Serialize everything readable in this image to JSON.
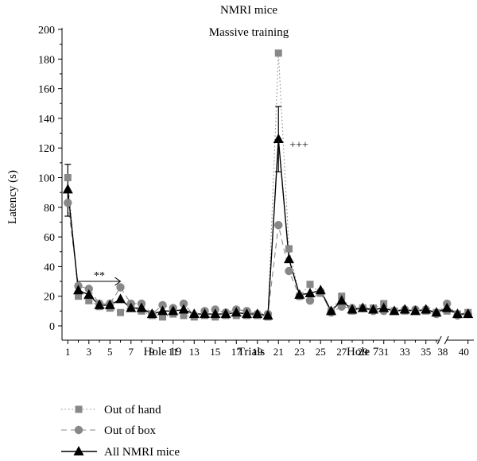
{
  "chart_data": {
    "type": "line",
    "title": "NMRI mice",
    "subtitle": "Massive training",
    "ylabel": "Latency (s)",
    "xlabel": "Trials",
    "ylim": [
      0,
      200
    ],
    "yticks": [
      0,
      20,
      40,
      60,
      80,
      100,
      120,
      140,
      160,
      180,
      200
    ],
    "x_tick_labels": [
      "1",
      "3",
      "5",
      "7",
      "9",
      "11",
      "13",
      "15",
      "17",
      "19",
      "21",
      "23",
      "25",
      "27",
      "29",
      "31",
      "33",
      "35",
      "38",
      "40"
    ],
    "hole_labels": [
      {
        "text": "Hole 19",
        "at_trial": 10
      },
      {
        "text": "Hole 7",
        "at_trial": 29
      }
    ],
    "annotations": [
      {
        "text": "**",
        "from_trial": 2,
        "to_trial": 6,
        "y": 30
      },
      {
        "text": "+++",
        "at_trial": 21,
        "y": 124
      }
    ],
    "axis_break_after_trial": 36,
    "trials": [
      1,
      2,
      3,
      4,
      5,
      6,
      7,
      8,
      9,
      10,
      11,
      12,
      13,
      14,
      15,
      16,
      17,
      18,
      19,
      20,
      21,
      22,
      23,
      24,
      25,
      26,
      27,
      28,
      29,
      30,
      31,
      32,
      33,
      34,
      35,
      36,
      37,
      38,
      39
    ],
    "series": [
      {
        "name": "Out of hand",
        "style": "dotted",
        "marker": "square",
        "color": "#888888",
        "values": [
          100,
          20,
          17,
          13,
          12,
          9,
          13,
          10,
          7,
          6,
          8,
          7,
          6,
          7,
          6,
          7,
          7,
          7,
          7,
          6,
          184,
          52,
          20,
          28,
          22,
          10,
          20,
          10,
          12,
          12,
          15,
          10,
          10,
          10,
          10,
          9,
          10,
          8,
          9
        ]
      },
      {
        "name": "Out of box",
        "style": "dashed",
        "marker": "circle",
        "color": "#888888",
        "values": [
          83,
          27,
          25,
          15,
          15,
          26,
          15,
          15,
          8,
          14,
          12,
          15,
          7,
          10,
          11,
          9,
          11,
          10,
          8,
          8,
          68,
          37,
          20,
          17,
          23,
          9,
          13,
          12,
          12,
          10,
          10,
          10,
          11,
          11,
          11,
          8,
          15,
          7,
          8
        ]
      },
      {
        "name": "All NMRI mice",
        "style": "solid",
        "marker": "triangle",
        "color": "#000000",
        "values": [
          92,
          24,
          21,
          14,
          14,
          18,
          12,
          12,
          8,
          10,
          10,
          11,
          8,
          8,
          8,
          8,
          9,
          8,
          8,
          7,
          126,
          45,
          21,
          22,
          24,
          10,
          17,
          11,
          12,
          11,
          12,
          10,
          11,
          10,
          11,
          9,
          12,
          8,
          8
        ]
      }
    ],
    "error_bars": [
      {
        "series": "All NMRI mice",
        "trial": 1,
        "low": 74,
        "high": 109
      },
      {
        "series": "All NMRI mice",
        "trial": 21,
        "low": 104,
        "high": 148
      }
    ]
  }
}
